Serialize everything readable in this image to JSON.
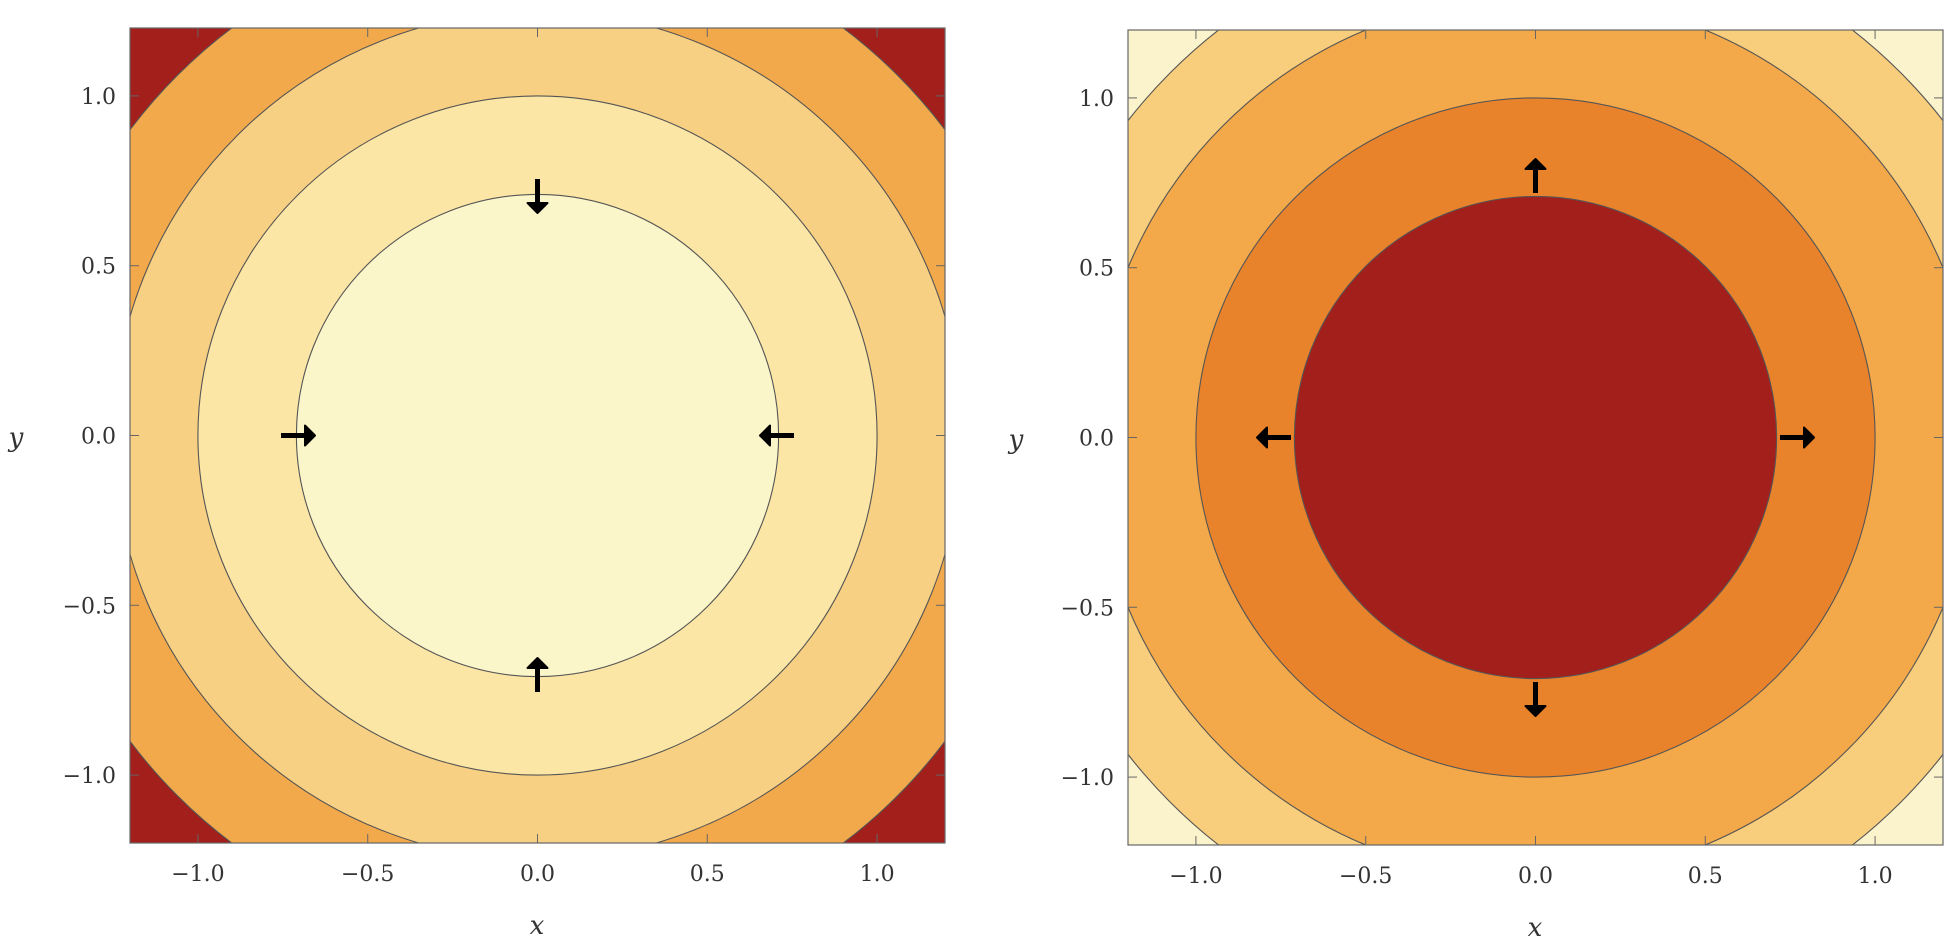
{
  "chart_data": [
    {
      "type": "contour",
      "xlabel": "x",
      "ylabel": "y",
      "xlim": [
        -1.2,
        1.2
      ],
      "ylim": [
        -1.2,
        1.2
      ],
      "xticks": [
        "−1.0",
        "−0.5",
        "0.0",
        "0.5",
        "1.0"
      ],
      "yticks": [
        "−1.0",
        "−0.5",
        "0.0",
        "0.5",
        "1.0"
      ],
      "xtick_values": [
        -1.0,
        -0.5,
        0.0,
        0.5,
        1.0
      ],
      "ytick_values": [
        -1.0,
        -0.5,
        0.0,
        0.5,
        1.0
      ],
      "contour_radii": [
        0.71,
        1.0,
        1.25,
        1.5
      ],
      "fill_colors": [
        "#fbf6c9",
        "#fbe6a5",
        "#f8d083",
        "#f2a94b",
        "#dd7128",
        "#a21f1b"
      ],
      "arrow_direction": "inward",
      "arrows": [
        {
          "x": 0.0,
          "y": 0.72,
          "dx": 0.0,
          "dy": -1
        },
        {
          "x": 0.0,
          "y": -0.72,
          "dx": 0.0,
          "dy": 1
        },
        {
          "x": -0.72,
          "y": 0.0,
          "dx": 1,
          "dy": 0.0
        },
        {
          "x": 0.72,
          "y": 0.0,
          "dx": -1,
          "dy": 0.0
        }
      ]
    },
    {
      "type": "contour",
      "xlabel": "x",
      "ylabel": "y",
      "xlim": [
        -1.2,
        1.2
      ],
      "ylim": [
        -1.2,
        1.2
      ],
      "xticks": [
        "−1.0",
        "−0.5",
        "0.0",
        "0.5",
        "1.0"
      ],
      "yticks": [
        "−1.0",
        "−0.5",
        "0.0",
        "0.5",
        "1.0"
      ],
      "xtick_values": [
        -1.0,
        -0.5,
        0.0,
        0.5,
        1.0
      ],
      "ytick_values": [
        -1.0,
        -0.5,
        0.0,
        0.5,
        1.0
      ],
      "contour_radii": [
        0.71,
        1.0,
        1.3,
        1.52
      ],
      "fill_colors": [
        "#a21f1b",
        "#e8832c",
        "#f3a849",
        "#f8cd7b",
        "#fbe6ab"
      ],
      "arrow_direction": "outward",
      "arrows": [
        {
          "x": 0.0,
          "y": 0.72,
          "dx": 0.0,
          "dy": 1
        },
        {
          "x": 0.0,
          "y": -0.72,
          "dx": 0.0,
          "dy": -1
        },
        {
          "x": -0.72,
          "y": 0.0,
          "dx": -1,
          "dy": 0.0
        },
        {
          "x": 0.72,
          "y": 0.0,
          "dx": 1,
          "dy": 0.0
        }
      ]
    }
  ]
}
